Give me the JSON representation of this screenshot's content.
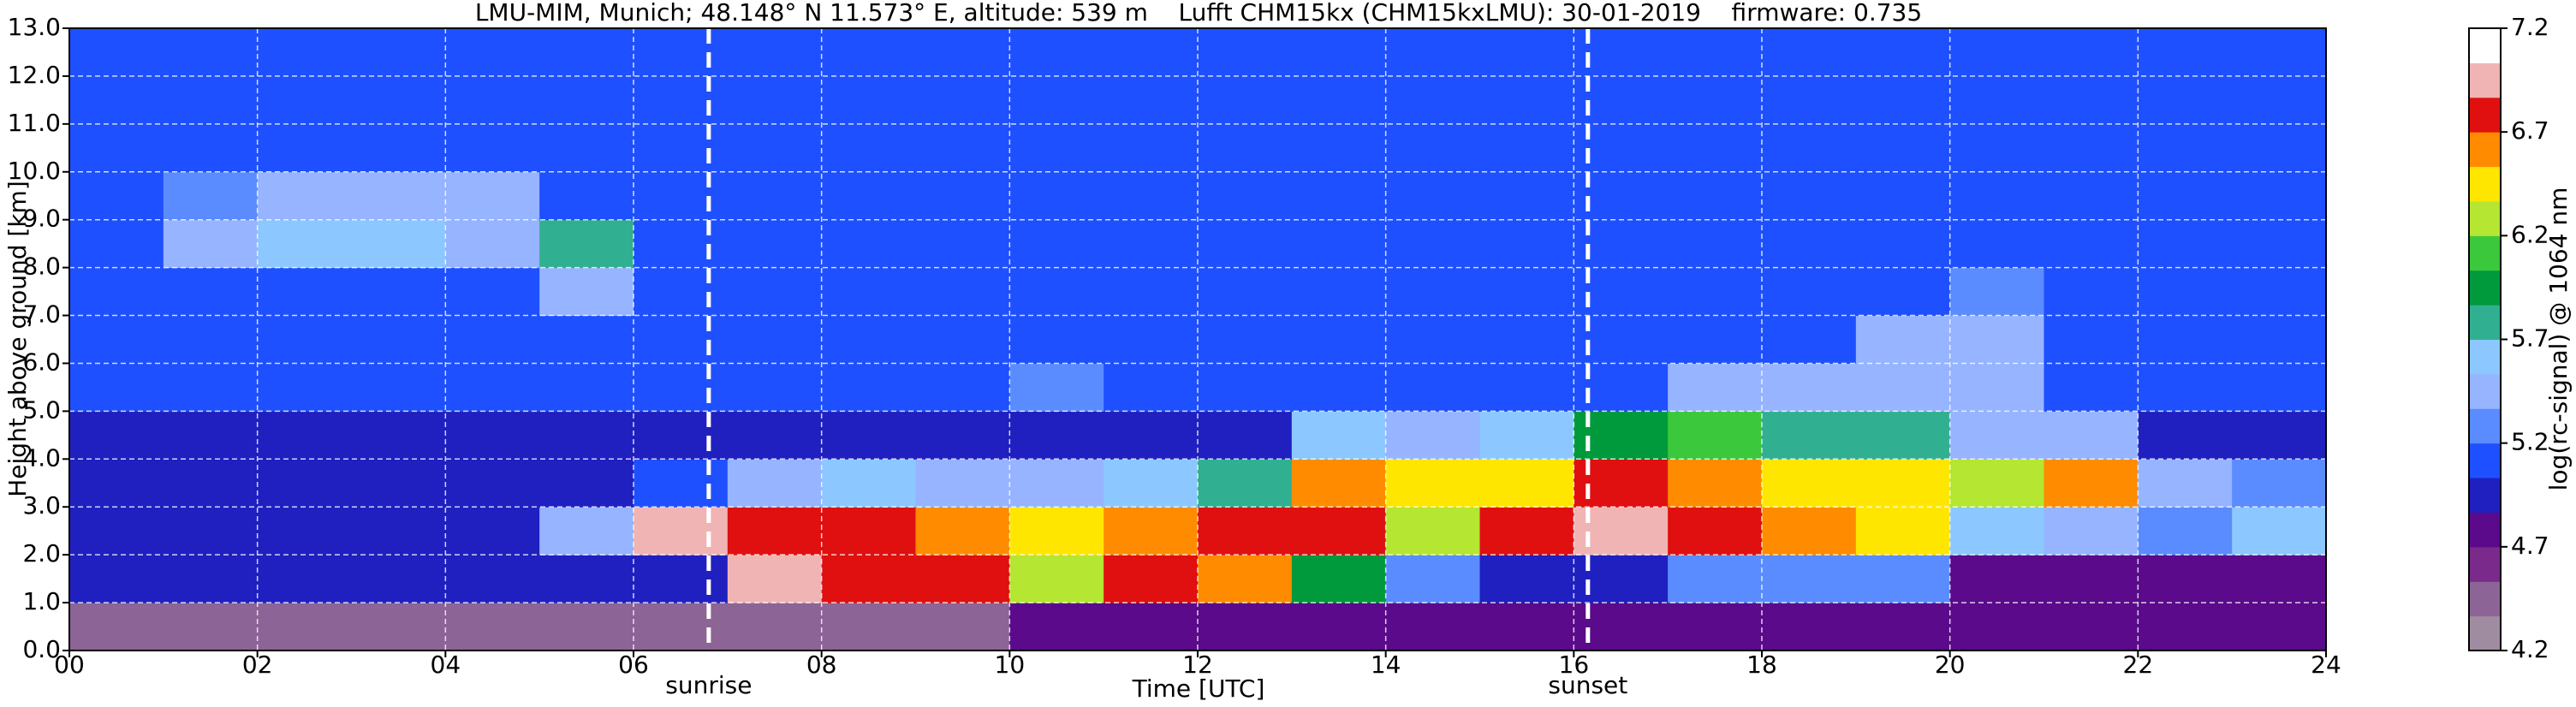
{
  "chart_data": {
    "type": "heatmap",
    "title": "LMU-MIM, Munich; 48.148° N 11.573° E, altitude: 539 m    Lufft CHM15kx (CHM15kxLMU): 30-01-2019    firmware: 0.735",
    "xlabel": "Time [UTC]",
    "ylabel": "Height above ground [km]",
    "colorbar_label": "log(rc-signal) @ 1064 nm",
    "xlim": [
      0,
      24
    ],
    "ylim": [
      0,
      13
    ],
    "zlim": [
      4.2,
      7.2
    ],
    "xticks": [
      {
        "value": 0,
        "label": "00"
      },
      {
        "value": 2,
        "label": "02"
      },
      {
        "value": 4,
        "label": "04"
      },
      {
        "value": 6,
        "label": "06"
      },
      {
        "value": 8,
        "label": "08"
      },
      10,
      12,
      14,
      16,
      18,
      20,
      22,
      24
    ],
    "yticks": [
      {
        "value": 0,
        "label": "0.0"
      },
      {
        "value": 1,
        "label": "1.0"
      },
      {
        "value": 2,
        "label": "2.0"
      },
      {
        "value": 3,
        "label": "3.0"
      },
      {
        "value": 4,
        "label": "4.0"
      },
      {
        "value": 5,
        "label": "5.0"
      },
      {
        "value": 6,
        "label": "6.0"
      },
      {
        "value": 7,
        "label": "7.0"
      },
      {
        "value": 8,
        "label": "8.0"
      },
      {
        "value": 9,
        "label": "9.0"
      },
      {
        "value": 10,
        "label": "10.0"
      },
      {
        "value": 11,
        "label": "11.0"
      },
      {
        "value": 12,
        "label": "12.0"
      },
      {
        "value": 13,
        "label": "13.0"
      }
    ],
    "zticks": [
      4.2,
      4.7,
      5.2,
      5.7,
      6.2,
      6.7,
      7.2
    ],
    "grid": true,
    "colorscale": [
      "#a08ca0",
      "#8c6496",
      "#7a2a8a",
      "#5a0a8a",
      "#2020c0",
      "#1e50ff",
      "#5a8cff",
      "#96b4ff",
      "#8cc8ff",
      "#30b090",
      "#009a3c",
      "#3cc83c",
      "#b4e632",
      "#ffe600",
      "#ff8c00",
      "#e01010",
      "#f0b4b4",
      "#ffffff"
    ],
    "vlines": [
      {
        "x": 6.8,
        "label": "sunrise"
      },
      {
        "x": 16.15,
        "label": "sunset"
      }
    ],
    "xbins": [
      0,
      1,
      2,
      3,
      4,
      5,
      6,
      7,
      8,
      9,
      10,
      11,
      12,
      13,
      14,
      15,
      16,
      17,
      18,
      19,
      20,
      21,
      22,
      23,
      24
    ],
    "ybins": [
      0,
      1,
      2,
      3,
      4,
      5,
      6,
      7,
      8,
      9,
      10,
      11,
      12,
      13
    ],
    "z": [
      [
        4.4,
        4.4,
        4.4,
        4.4,
        4.4,
        4.4,
        4.4,
        4.4,
        4.4,
        4.4,
        4.8,
        4.8,
        4.8,
        4.8,
        4.8,
        4.8,
        4.8,
        4.8,
        4.8,
        4.8,
        4.8,
        4.8,
        4.8,
        4.8
      ],
      [
        4.9,
        4.9,
        4.9,
        4.9,
        4.9,
        4.9,
        5.0,
        6.9,
        6.8,
        6.8,
        6.2,
        6.7,
        6.6,
        6.0,
        5.2,
        4.9,
        4.9,
        5.2,
        5.3,
        5.2,
        4.8,
        4.8,
        4.8,
        4.8
      ],
      [
        5.0,
        5.0,
        5.0,
        5.0,
        5.0,
        5.5,
        6.9,
        6.8,
        6.7,
        6.6,
        6.5,
        6.6,
        6.7,
        6.8,
        6.3,
        6.8,
        6.9,
        6.7,
        6.6,
        6.5,
        5.6,
        5.5,
        5.3,
        5.6
      ],
      [
        5.0,
        5.0,
        5.0,
        5.0,
        5.0,
        5.0,
        5.1,
        5.4,
        5.6,
        5.5,
        5.4,
        5.6,
        5.8,
        6.6,
        6.4,
        6.5,
        6.7,
        6.6,
        6.5,
        6.4,
        6.3,
        6.6,
        5.4,
        5.2
      ],
      [
        5.0,
        5.0,
        5.0,
        5.0,
        5.0,
        5.0,
        5.0,
        5.0,
        5.0,
        5.0,
        5.0,
        5.0,
        5.0,
        5.6,
        5.5,
        5.6,
        6.0,
        6.1,
        5.8,
        5.8,
        5.5,
        5.4,
        5.0,
        5.0
      ],
      [
        5.1,
        5.1,
        5.1,
        5.1,
        5.1,
        5.1,
        5.1,
        5.1,
        5.1,
        5.1,
        5.3,
        5.1,
        5.1,
        5.1,
        5.1,
        5.1,
        5.1,
        5.4,
        5.4,
        5.5,
        5.4,
        5.1,
        5.1,
        5.1
      ],
      [
        5.1,
        5.1,
        5.1,
        5.1,
        5.1,
        5.1,
        5.1,
        5.1,
        5.1,
        5.1,
        5.1,
        5.1,
        5.1,
        5.1,
        5.1,
        5.1,
        5.1,
        5.1,
        5.1,
        5.5,
        5.4,
        5.1,
        5.1,
        5.1
      ],
      [
        5.1,
        5.1,
        5.1,
        5.1,
        5.1,
        5.4,
        5.1,
        5.1,
        5.1,
        5.1,
        5.1,
        5.1,
        5.1,
        5.1,
        5.1,
        5.1,
        5.1,
        5.1,
        5.1,
        5.1,
        5.3,
        5.1,
        5.1,
        5.1
      ],
      [
        5.1,
        5.4,
        5.6,
        5.6,
        5.5,
        5.8,
        5.1,
        5.1,
        5.1,
        5.1,
        5.1,
        5.1,
        5.1,
        5.1,
        5.1,
        5.1,
        5.1,
        5.1,
        5.1,
        5.1,
        5.1,
        5.1,
        5.1,
        5.1
      ],
      [
        5.1,
        5.3,
        5.5,
        5.5,
        5.4,
        5.1,
        5.1,
        5.1,
        5.1,
        5.1,
        5.1,
        5.1,
        5.1,
        5.1,
        5.1,
        5.1,
        5.1,
        5.1,
        5.1,
        5.1,
        5.1,
        5.1,
        5.1,
        5.1
      ],
      [
        5.1,
        5.1,
        5.1,
        5.1,
        5.1,
        5.1,
        5.1,
        5.1,
        5.1,
        5.1,
        5.1,
        5.1,
        5.1,
        5.1,
        5.1,
        5.1,
        5.1,
        5.1,
        5.1,
        5.1,
        5.1,
        5.1,
        5.1,
        5.1
      ],
      [
        5.1,
        5.1,
        5.1,
        5.1,
        5.1,
        5.1,
        5.1,
        5.1,
        5.1,
        5.1,
        5.1,
        5.1,
        5.1,
        5.1,
        5.1,
        5.1,
        5.1,
        5.1,
        5.1,
        5.1,
        5.1,
        5.1,
        5.1,
        5.1
      ],
      [
        5.1,
        5.1,
        5.1,
        5.1,
        5.1,
        5.1,
        5.1,
        5.1,
        5.1,
        5.1,
        5.1,
        5.1,
        5.1,
        5.1,
        5.1,
        5.1,
        5.1,
        5.1,
        5.1,
        5.1,
        5.1,
        5.1,
        5.1,
        5.1
      ]
    ]
  }
}
